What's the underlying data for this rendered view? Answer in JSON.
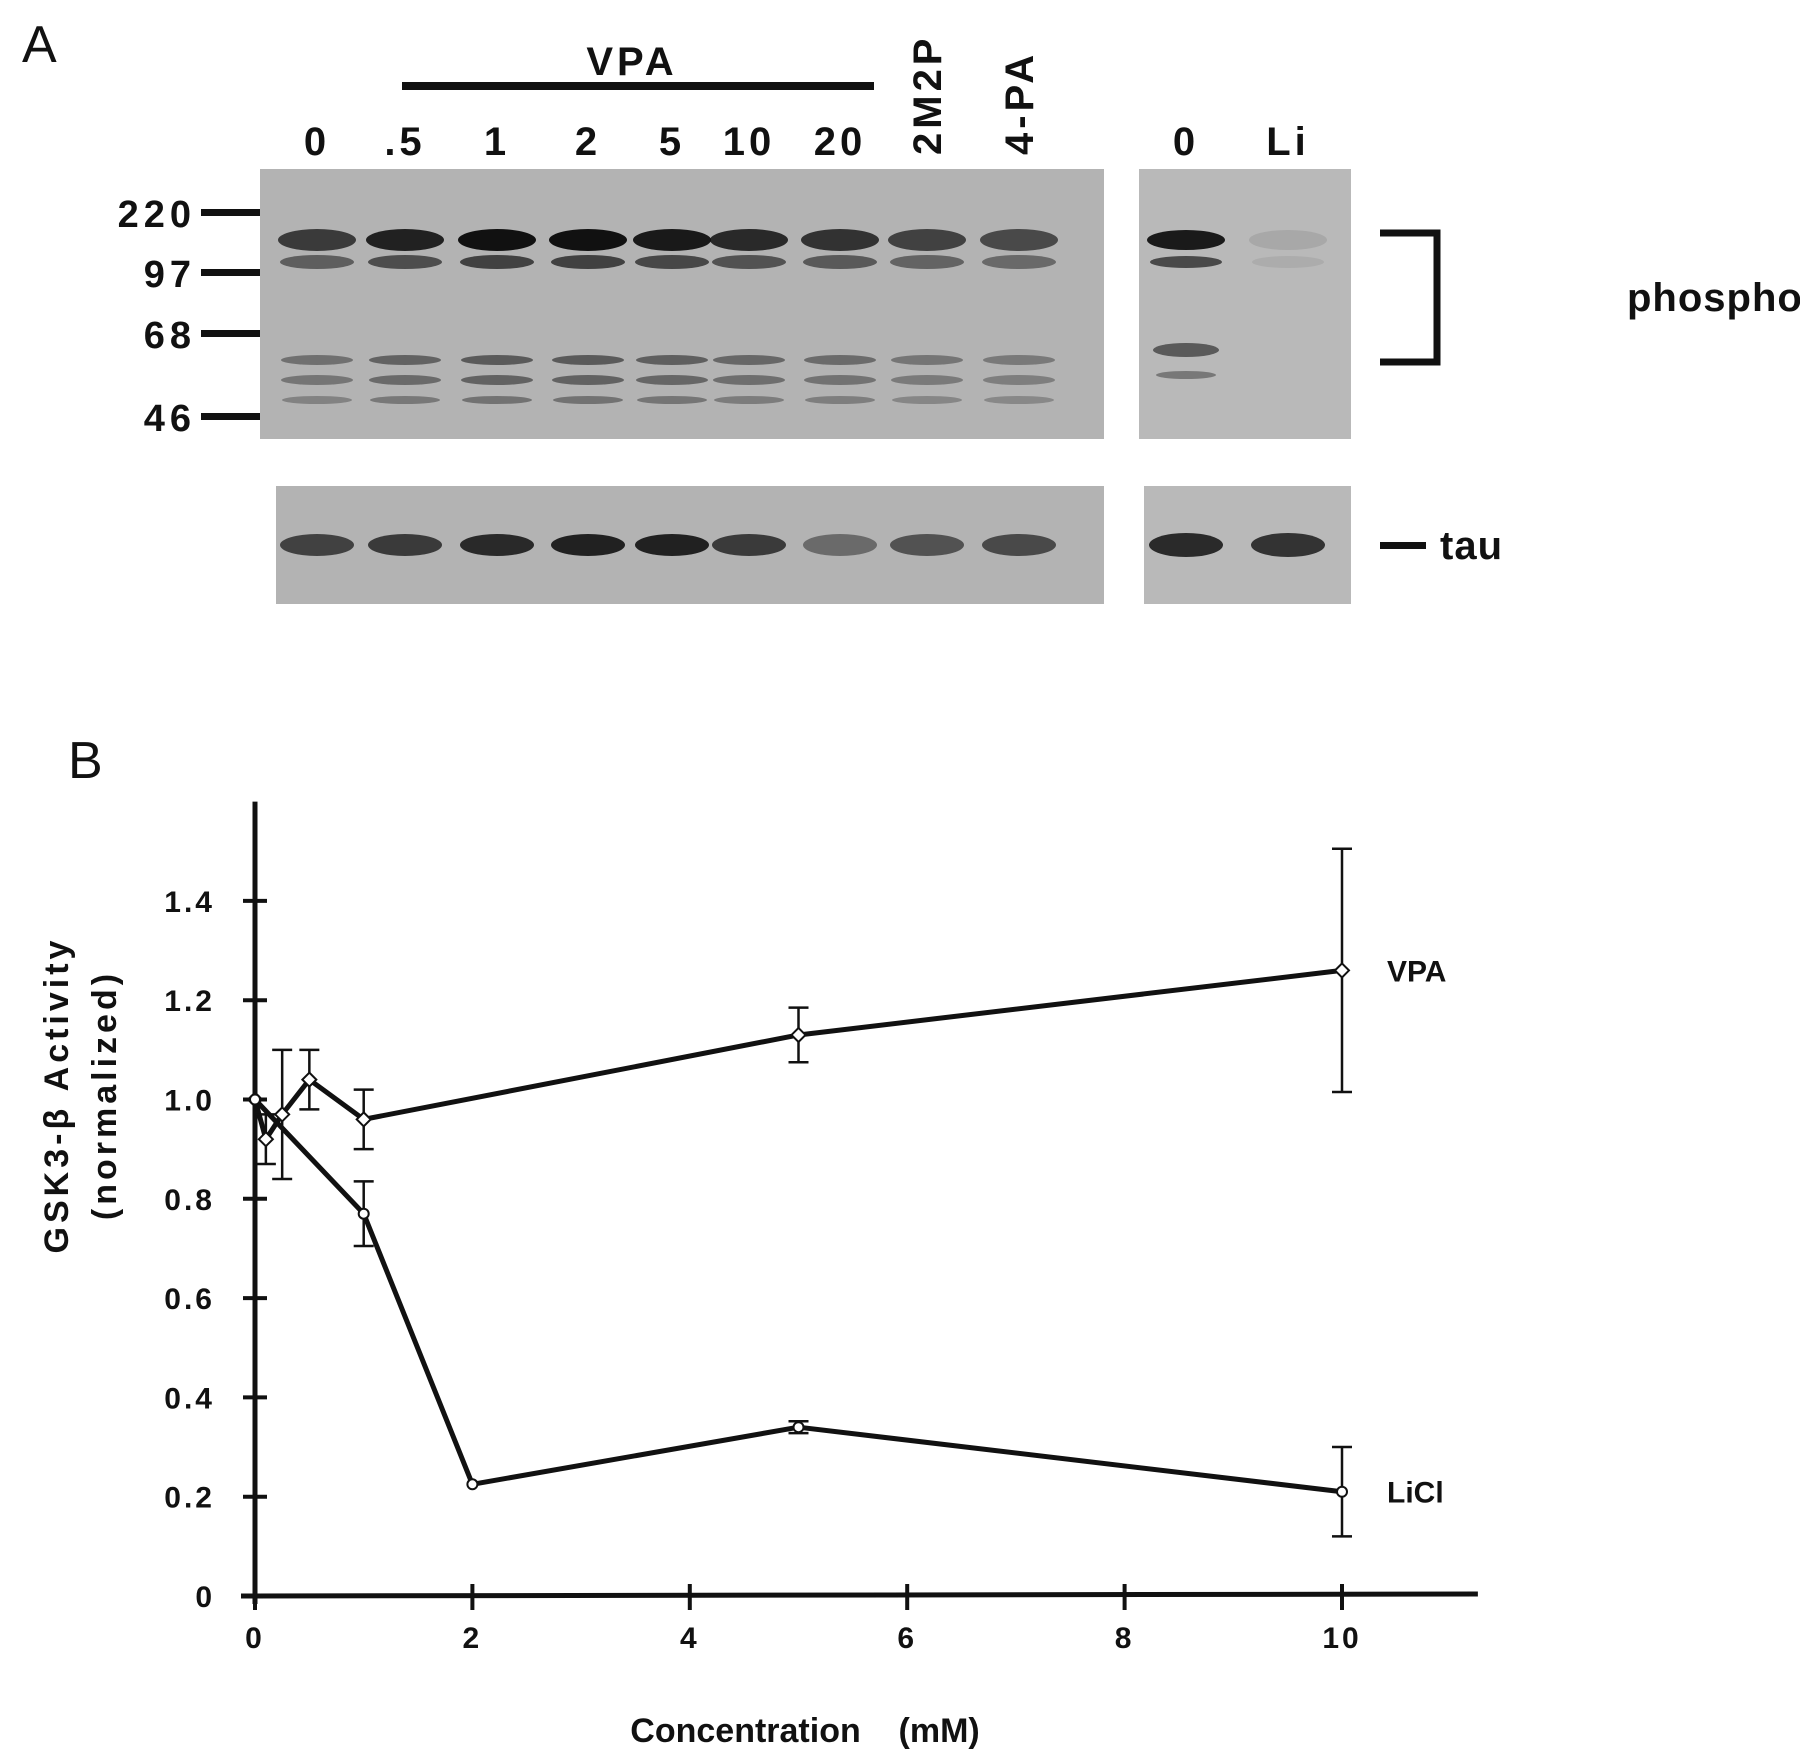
{
  "panel_a": {
    "label": "A",
    "treatment_group_label": "VPA",
    "lanes": [
      "0",
      ".5",
      "1",
      "2",
      "5",
      "10",
      "20",
      "2M2P",
      "4-PA"
    ],
    "right_lanes": [
      "0",
      "Li"
    ],
    "mw_markers": [
      "220",
      "97",
      "68",
      "46"
    ],
    "phospho_label": "phospho-tau",
    "tau_label": "tau",
    "phospho_band_intensity": [
      0.75,
      0.9,
      1.0,
      1.0,
      0.95,
      0.85,
      0.8,
      0.7,
      0.65
    ],
    "right_phospho_band_intensity": [
      0.95,
      0.1
    ],
    "tau_band_intensity": [
      0.7,
      0.75,
      0.85,
      0.9,
      0.9,
      0.75,
      0.45,
      0.6,
      0.65
    ],
    "right_tau_band_intensity": [
      0.85,
      0.8
    ]
  },
  "panel_b": {
    "label": "B"
  },
  "chart_data": {
    "type": "line",
    "title": "",
    "xlabel": "Concentration    (mM)",
    "ylabel_line1": "GSK3-β   Activity",
    "ylabel_line2": "(normalized)",
    "xlim": [
      0,
      11.25
    ],
    "ylim": [
      0,
      1.6
    ],
    "xticks": [
      0,
      2,
      4,
      6,
      8,
      10
    ],
    "xtick_labels": [
      "0",
      "2",
      "4",
      "6",
      "8",
      "10"
    ],
    "yticks": [
      0,
      0.2,
      0.4,
      0.6,
      0.8,
      1.0,
      1.2,
      1.4
    ],
    "ytick_labels": [
      "0",
      "0.2",
      "0.4",
      "0.6",
      "0.8",
      "1.0",
      "1.2",
      "1.4"
    ],
    "grid": false,
    "series": [
      {
        "name": "VPA",
        "marker": "diamond",
        "x": [
          0,
          0.1,
          0.25,
          0.5,
          1,
          5,
          10
        ],
        "y": [
          1.0,
          0.92,
          0.97,
          1.04,
          0.96,
          1.13,
          1.26
        ],
        "err": [
          0,
          0.05,
          0.13,
          0.06,
          0.06,
          0.055,
          0.245
        ]
      },
      {
        "name": "LiCl",
        "marker": "circle",
        "x": [
          0,
          1,
          2,
          5,
          10
        ],
        "y": [
          1.0,
          0.77,
          0.225,
          0.34,
          0.21
        ],
        "err": [
          0,
          0.065,
          0,
          0.012,
          0.09
        ]
      }
    ]
  }
}
